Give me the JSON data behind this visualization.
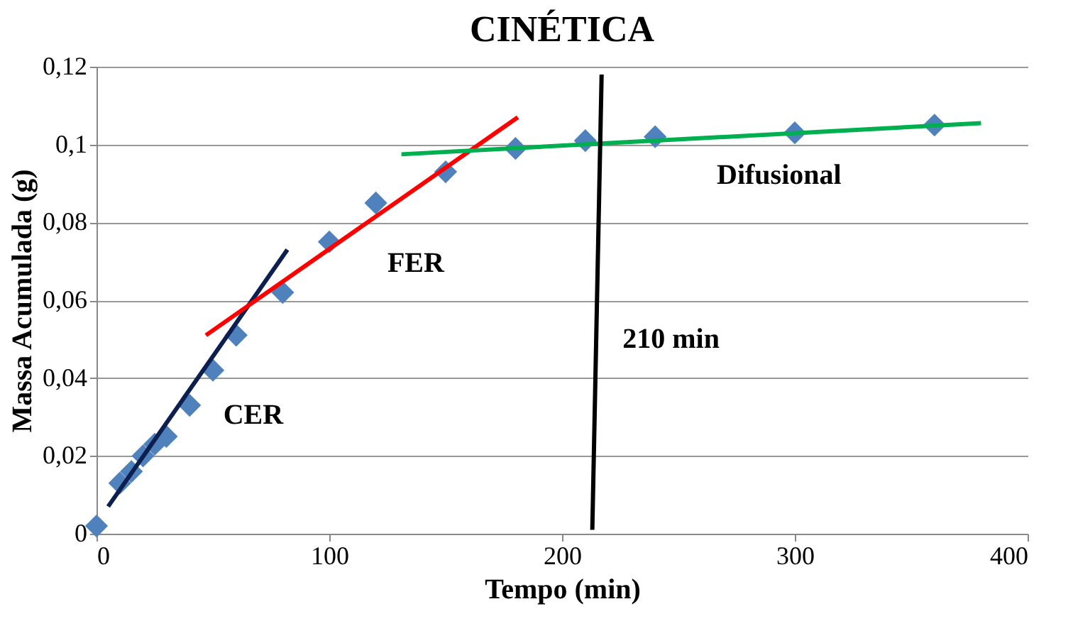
{
  "chart_data": {
    "type": "scatter",
    "title": "CINÉTICA",
    "xlabel": "Tempo (min)",
    "ylabel": "Massa Acumulada (g)",
    "x": [
      0,
      10,
      15,
      20,
      25,
      30,
      40,
      50,
      60,
      80,
      100,
      120,
      150,
      180,
      210,
      240,
      300,
      360
    ],
    "series": [
      {
        "color": "#4f81bd",
        "marker": "diamond",
        "values": [
          0.002,
          0.013,
          0.016,
          0.02,
          0.023,
          0.025,
          0.033,
          0.042,
          0.051,
          0.062,
          0.075,
          0.085,
          0.093,
          0.099,
          0.101,
          0.102,
          0.103,
          0.105
        ]
      },
      {
        "type": "line",
        "name": "CER",
        "color": "#0d1f4f",
        "marker": "none",
        "x": [
          5,
          82
        ],
        "values": [
          0.007,
          0.073
        ]
      },
      {
        "type": "line",
        "name": "FER",
        "color": "#ff0000",
        "marker": "none",
        "x": [
          47,
          181
        ],
        "values": [
          0.051,
          0.107
        ]
      },
      {
        "type": "line",
        "name": "Difusional",
        "color": "#00b050",
        "marker": "none",
        "x": [
          131,
          380
        ],
        "values": [
          0.0975,
          0.1055
        ]
      },
      {
        "type": "line",
        "name": "210 min",
        "color": "#000000",
        "marker": "none",
        "x": [
          213,
          217
        ],
        "values": [
          0.001,
          0.118
        ]
      }
    ],
    "xlim": [
      0,
      400
    ],
    "xticks": [
      0,
      100,
      200,
      300,
      400
    ],
    "ylim": [
      0,
      0.12
    ],
    "yticks": [
      {
        "value": 0,
        "label": "0"
      },
      {
        "value": 0.02,
        "label": "0,02"
      },
      {
        "value": 0.04,
        "label": "0,04"
      },
      {
        "value": 0.06,
        "label": "0,06"
      },
      {
        "value": 0.08,
        "label": "0,08"
      },
      {
        "value": 0.1,
        "label": "0,1"
      },
      {
        "value": 0.12,
        "label": "0,12"
      }
    ],
    "grid": "y"
  }
}
